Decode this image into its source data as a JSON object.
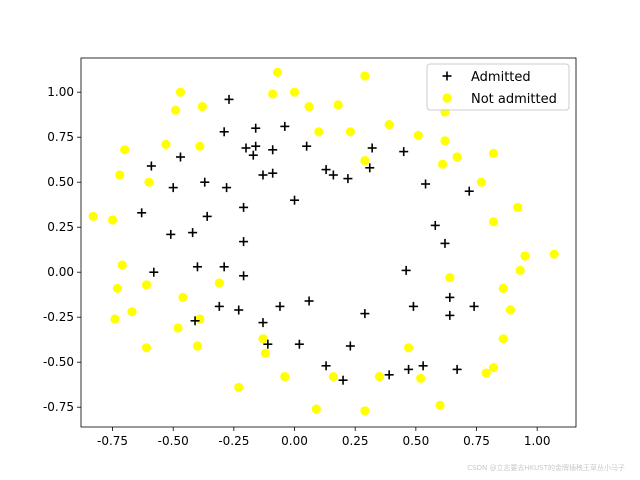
{
  "chart_data": {
    "type": "scatter",
    "title": "",
    "xlabel": "",
    "ylabel": "",
    "xlim": [
      -0.88,
      1.16
    ],
    "ylim": [
      -0.86,
      1.19
    ],
    "xticks": [
      "-0.75",
      "-0.50",
      "-0.25",
      "0.00",
      "0.25",
      "0.50",
      "0.75",
      "1.00"
    ],
    "xtick_values": [
      -0.75,
      -0.5,
      -0.25,
      0.0,
      0.25,
      0.5,
      0.75,
      1.0
    ],
    "yticks": [
      "-0.75",
      "-0.50",
      "-0.25",
      "0.00",
      "0.25",
      "0.50",
      "0.75",
      "1.00"
    ],
    "ytick_values": [
      -0.75,
      -0.5,
      -0.25,
      0.0,
      0.25,
      0.5,
      0.75,
      1.0
    ],
    "grid": false,
    "legend_position": "top-right",
    "series": [
      {
        "name": "Admitted",
        "marker": "plus",
        "color": "#000000",
        "points": [
          [
            -0.27,
            0.96
          ],
          [
            -0.16,
            0.8
          ],
          [
            -0.04,
            0.81
          ],
          [
            0.05,
            0.7
          ],
          [
            0.32,
            0.69
          ],
          [
            0.45,
            0.67
          ],
          [
            -0.29,
            0.78
          ],
          [
            -0.2,
            0.69
          ],
          [
            -0.16,
            0.7
          ],
          [
            -0.17,
            0.65
          ],
          [
            -0.09,
            0.68
          ],
          [
            -0.59,
            0.59
          ],
          [
            -0.47,
            0.64
          ],
          [
            0.13,
            0.57
          ],
          [
            0.16,
            0.54
          ],
          [
            0.22,
            0.52
          ],
          [
            0.31,
            0.58
          ],
          [
            0.54,
            0.49
          ],
          [
            -0.5,
            0.47
          ],
          [
            -0.37,
            0.5
          ],
          [
            -0.28,
            0.47
          ],
          [
            -0.13,
            0.54
          ],
          [
            -0.09,
            0.55
          ],
          [
            -0.63,
            0.33
          ],
          [
            0.0,
            0.4
          ],
          [
            0.72,
            0.45
          ],
          [
            -0.21,
            0.36
          ],
          [
            -0.36,
            0.31
          ],
          [
            0.58,
            0.26
          ],
          [
            -0.51,
            0.21
          ],
          [
            -0.42,
            0.22
          ],
          [
            -0.21,
            0.17
          ],
          [
            0.62,
            0.16
          ],
          [
            -0.4,
            0.03
          ],
          [
            -0.29,
            0.03
          ],
          [
            -0.58,
            0.0
          ],
          [
            -0.21,
            -0.02
          ],
          [
            0.46,
            0.01
          ],
          [
            -0.31,
            -0.19
          ],
          [
            -0.23,
            -0.21
          ],
          [
            -0.06,
            -0.19
          ],
          [
            0.06,
            -0.16
          ],
          [
            0.49,
            -0.19
          ],
          [
            0.64,
            -0.14
          ],
          [
            0.74,
            -0.19
          ],
          [
            -0.41,
            -0.27
          ],
          [
            -0.13,
            -0.28
          ],
          [
            0.29,
            -0.23
          ],
          [
            0.64,
            -0.24
          ],
          [
            -0.11,
            -0.4
          ],
          [
            0.02,
            -0.4
          ],
          [
            0.13,
            -0.52
          ],
          [
            0.23,
            -0.41
          ],
          [
            0.2,
            -0.6
          ],
          [
            0.39,
            -0.57
          ],
          [
            0.47,
            -0.54
          ],
          [
            0.53,
            -0.52
          ],
          [
            0.67,
            -0.54
          ]
        ]
      },
      {
        "name": "Not admitted",
        "marker": "circle",
        "color": "#ffff00",
        "points": [
          [
            -0.47,
            1.0
          ],
          [
            -0.49,
            0.9
          ],
          [
            -0.38,
            0.92
          ],
          [
            -0.09,
            0.99
          ],
          [
            -0.07,
            1.11
          ],
          [
            0.0,
            1.0
          ],
          [
            0.06,
            0.92
          ],
          [
            0.18,
            0.93
          ],
          [
            0.29,
            1.09
          ],
          [
            0.39,
            0.82
          ],
          [
            0.1,
            0.78
          ],
          [
            0.23,
            0.78
          ],
          [
            0.51,
            0.76
          ],
          [
            0.62,
            0.89
          ],
          [
            -0.7,
            0.68
          ],
          [
            -0.53,
            0.71
          ],
          [
            -0.39,
            0.7
          ],
          [
            0.62,
            0.73
          ],
          [
            0.67,
            0.64
          ],
          [
            0.82,
            0.66
          ],
          [
            -0.72,
            0.54
          ],
          [
            -0.6,
            0.5
          ],
          [
            0.29,
            0.62
          ],
          [
            0.61,
            0.6
          ],
          [
            0.77,
            0.5
          ],
          [
            -0.83,
            0.31
          ],
          [
            -0.75,
            0.29
          ],
          [
            0.92,
            0.36
          ],
          [
            0.82,
            0.28
          ],
          [
            -0.71,
            0.04
          ],
          [
            -0.73,
            -0.09
          ],
          [
            -0.61,
            -0.07
          ],
          [
            0.64,
            -0.03
          ],
          [
            0.93,
            0.01
          ],
          [
            0.95,
            0.09
          ],
          [
            1.07,
            0.1
          ],
          [
            0.86,
            -0.09
          ],
          [
            -0.74,
            -0.26
          ],
          [
            -0.67,
            -0.22
          ],
          [
            -0.46,
            -0.14
          ],
          [
            -0.48,
            -0.31
          ],
          [
            -0.39,
            -0.26
          ],
          [
            -0.4,
            -0.41
          ],
          [
            -0.61,
            -0.42
          ],
          [
            0.89,
            -0.21
          ],
          [
            -0.13,
            -0.37
          ],
          [
            -0.12,
            -0.45
          ],
          [
            -0.04,
            -0.58
          ],
          [
            0.16,
            -0.58
          ],
          [
            0.35,
            -0.58
          ],
          [
            0.47,
            -0.42
          ],
          [
            0.52,
            -0.59
          ],
          [
            0.86,
            -0.37
          ],
          [
            0.79,
            -0.56
          ],
          [
            0.82,
            -0.53
          ],
          [
            -0.23,
            -0.64
          ],
          [
            0.09,
            -0.76
          ],
          [
            0.29,
            -0.77
          ],
          [
            0.6,
            -0.74
          ],
          [
            -0.31,
            -0.06
          ]
        ]
      }
    ]
  },
  "watermark_text": "CSDN @立志要去HKUST的金牌插秧王草丛小马子"
}
